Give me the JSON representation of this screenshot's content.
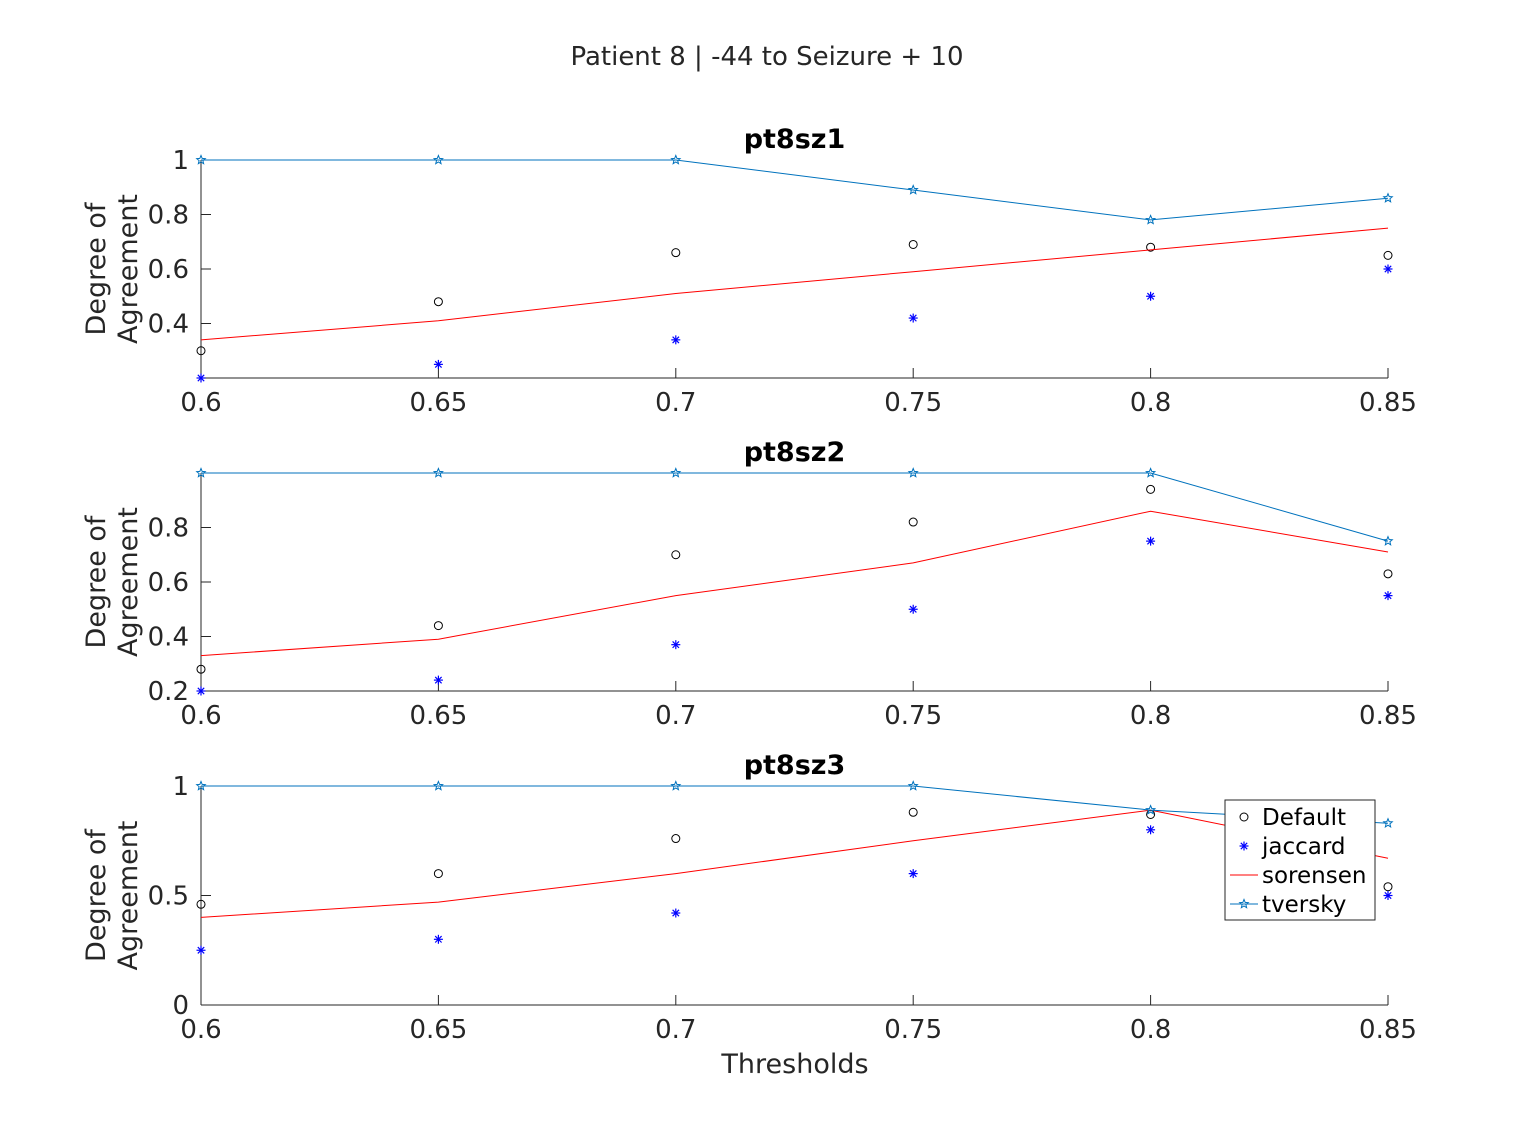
{
  "figure_title": "Patient 8 | -44 to Seizure + 10",
  "xlabel": "Thresholds",
  "colors": {
    "default": "#000000",
    "jaccard": "#0000ff",
    "sorensen": "#ff0000",
    "tversky": "#0072bd",
    "axis": "#262626"
  },
  "legend": {
    "location": "lower-right of third panel",
    "entries": [
      {
        "label": "Default",
        "marker": "circle"
      },
      {
        "label": "jaccard",
        "marker": "asterisk"
      },
      {
        "label": "sorensen",
        "marker": "line"
      },
      {
        "label": "tversky",
        "marker": "star-line"
      }
    ]
  },
  "chart_data": [
    {
      "type": "line",
      "title": "pt8sz1",
      "xlabel": "",
      "ylabel": "Degree of\nAgreement",
      "x": [
        0.6,
        0.65,
        0.7,
        0.75,
        0.8,
        0.85
      ],
      "xlim": [
        0.6,
        0.85
      ],
      "ylim": [
        0.2,
        1.0
      ],
      "xticks": [
        "0.6",
        "0.65",
        "0.7",
        "0.75",
        "0.8",
        "0.85"
      ],
      "yticks": [
        {
          "v": 0.4,
          "label": "0.4"
        },
        {
          "v": 0.6,
          "label": "0.6"
        },
        {
          "v": 0.8,
          "label": "0.8"
        },
        {
          "v": 1.0,
          "label": "1"
        }
      ],
      "series": [
        {
          "name": "Default",
          "style": "circle",
          "values": [
            0.3,
            0.48,
            0.66,
            0.69,
            0.68,
            0.65
          ]
        },
        {
          "name": "jaccard",
          "style": "asterisk",
          "values": [
            0.2,
            0.25,
            0.34,
            0.42,
            0.5,
            0.6
          ]
        },
        {
          "name": "sorensen",
          "style": "line",
          "values": [
            0.34,
            0.41,
            0.51,
            0.59,
            0.67,
            0.75
          ]
        },
        {
          "name": "tversky",
          "style": "star-line",
          "values": [
            1.0,
            1.0,
            1.0,
            0.89,
            0.78,
            0.86
          ]
        }
      ]
    },
    {
      "type": "line",
      "title": "pt8sz2",
      "xlabel": "",
      "ylabel": "Degree of\nAgreement",
      "x": [
        0.6,
        0.65,
        0.7,
        0.75,
        0.8,
        0.85
      ],
      "xlim": [
        0.6,
        0.85
      ],
      "ylim": [
        0.2,
        1.0
      ],
      "xticks": [
        "0.6",
        "0.65",
        "0.7",
        "0.75",
        "0.8",
        "0.85"
      ],
      "yticks": [
        {
          "v": 0.2,
          "label": "0.2"
        },
        {
          "v": 0.4,
          "label": "0.4"
        },
        {
          "v": 0.6,
          "label": "0.6"
        },
        {
          "v": 0.8,
          "label": "0.8"
        }
      ],
      "series": [
        {
          "name": "Default",
          "style": "circle",
          "values": [
            0.28,
            0.44,
            0.7,
            0.82,
            0.94,
            0.63
          ]
        },
        {
          "name": "jaccard",
          "style": "asterisk",
          "values": [
            0.2,
            0.24,
            0.37,
            0.5,
            0.75,
            0.55
          ]
        },
        {
          "name": "sorensen",
          "style": "line",
          "values": [
            0.33,
            0.39,
            0.55,
            0.67,
            0.86,
            0.71
          ]
        },
        {
          "name": "tversky",
          "style": "star-line",
          "values": [
            1.0,
            1.0,
            1.0,
            1.0,
            1.0,
            0.75
          ]
        }
      ]
    },
    {
      "type": "line",
      "title": "pt8sz3",
      "xlabel": "Thresholds",
      "ylabel": "Degree of\nAgreement",
      "x": [
        0.6,
        0.65,
        0.7,
        0.75,
        0.8,
        0.85
      ],
      "xlim": [
        0.6,
        0.85
      ],
      "ylim": [
        0.0,
        1.0
      ],
      "xticks": [
        "0.6",
        "0.65",
        "0.7",
        "0.75",
        "0.8",
        "0.85"
      ],
      "yticks": [
        {
          "v": 0.0,
          "label": "0"
        },
        {
          "v": 0.5,
          "label": "0.5"
        },
        {
          "v": 1.0,
          "label": "1"
        }
      ],
      "series": [
        {
          "name": "Default",
          "style": "circle",
          "values": [
            0.46,
            0.6,
            0.76,
            0.88,
            0.87,
            0.54
          ]
        },
        {
          "name": "jaccard",
          "style": "asterisk",
          "values": [
            0.25,
            0.3,
            0.42,
            0.6,
            0.8,
            0.5
          ]
        },
        {
          "name": "sorensen",
          "style": "line",
          "values": [
            0.4,
            0.47,
            0.6,
            0.75,
            0.89,
            0.67
          ]
        },
        {
          "name": "tversky",
          "style": "star-line",
          "values": [
            1.0,
            1.0,
            1.0,
            1.0,
            0.89,
            0.83
          ]
        }
      ]
    }
  ]
}
